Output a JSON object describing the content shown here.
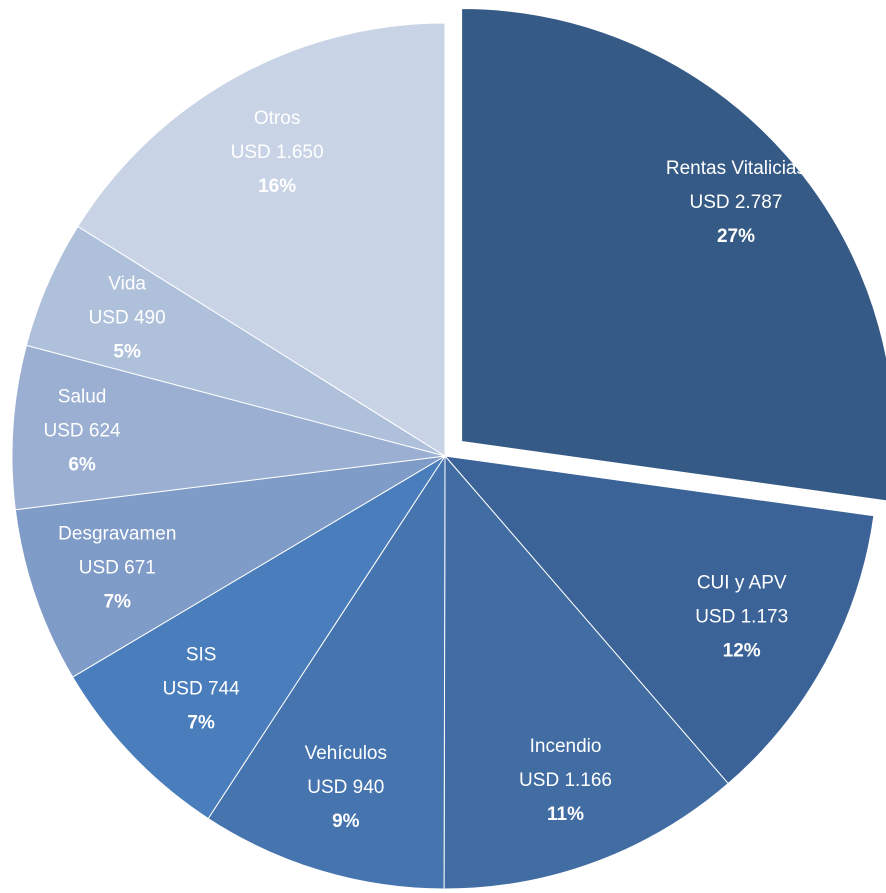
{
  "chart_data": {
    "type": "pie",
    "categories": [
      "Rentas Vitalicias",
      "CUI y APV",
      "Incendio",
      "Vehículos",
      "SIS",
      "Desgravamen",
      "Salud",
      "Vida",
      "Otros"
    ],
    "values": [
      2787,
      1173,
      1166,
      940,
      744,
      671,
      624,
      490,
      1650
    ],
    "value_labels": [
      "USD 2.787",
      "USD 1.173",
      "USD 1.166",
      "USD 940",
      "USD 744",
      "USD 671",
      "USD 624",
      "USD 490",
      "USD 1.650"
    ],
    "percent_labels": [
      "27%",
      "12%",
      "11%",
      "9%",
      "7%",
      "7%",
      "6%",
      "5%",
      "16%"
    ],
    "colors": [
      "#365a86",
      "#3b6397",
      "#416da3",
      "#4574ae",
      "#4a7dbb",
      "#7f9bc7",
      "#9aafd2",
      "#afc0db",
      "#c8d3e6"
    ],
    "exploded": [
      0
    ]
  }
}
